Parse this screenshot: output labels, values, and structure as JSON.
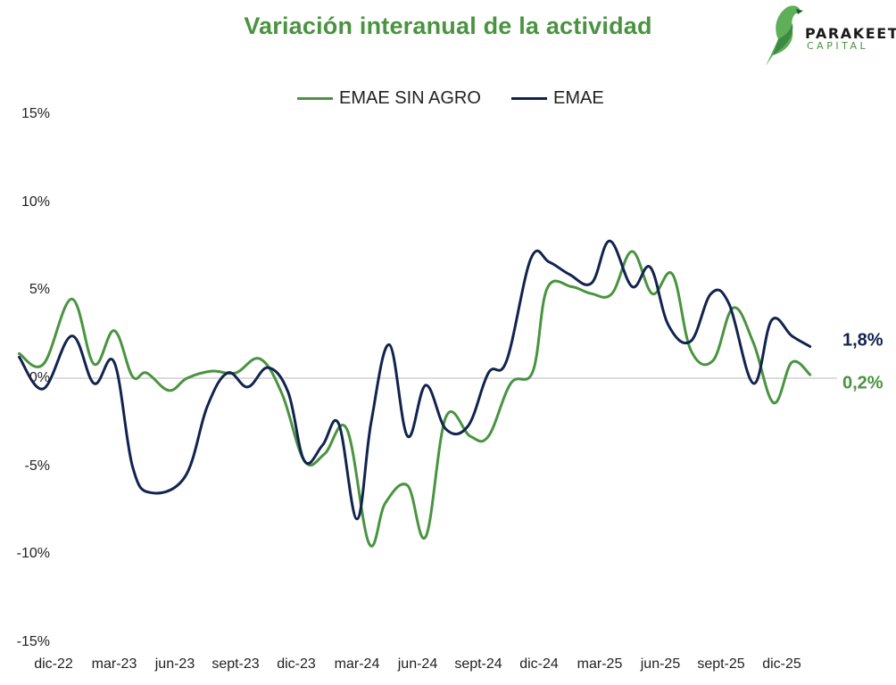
{
  "chart_data": {
    "type": "line",
    "title": "Variación interanual de la actividad",
    "xlabel": "",
    "ylabel": "",
    "ylim": [
      -15,
      15
    ],
    "y_ticks": [
      {
        "value": 15,
        "label": "15%"
      },
      {
        "value": 10,
        "label": "10%"
      },
      {
        "value": 5,
        "label": "5%"
      },
      {
        "value": 0,
        "label": "0%"
      },
      {
        "value": -5,
        "label": "-5%"
      },
      {
        "value": -10,
        "label": "-10%"
      },
      {
        "value": -15,
        "label": "-15%"
      }
    ],
    "x_ticks": [
      {
        "index": 0,
        "label": "dic-22"
      },
      {
        "index": 3,
        "label": "mar-23"
      },
      {
        "index": 6,
        "label": "jun-23"
      },
      {
        "index": 9,
        "label": "sept-23"
      },
      {
        "index": 12,
        "label": "dic-23"
      },
      {
        "index": 15,
        "label": "mar-24"
      },
      {
        "index": 18,
        "label": "jun-24"
      },
      {
        "index": 21,
        "label": "sept-24"
      },
      {
        "index": 24,
        "label": "dic-24"
      },
      {
        "index": 27,
        "label": "mar-25"
      },
      {
        "index": 30,
        "label": "jun-25"
      },
      {
        "index": 33,
        "label": "sept-25"
      },
      {
        "index": 36,
        "label": "dic-25"
      }
    ],
    "x_range": [
      0,
      39
    ],
    "series": [
      {
        "name": "EMAE SIN AGRO",
        "color": "#4a9340",
        "last_label": "0,2%",
        "x": [
          -1.7,
          -0.5,
          0.9,
          2.0,
          3.0,
          3.9,
          4.6,
          5.7,
          6.6,
          7.8,
          9.0,
          10.2,
          11.3,
          12.4,
          13.4,
          14.5,
          15.6,
          16.4,
          17.5,
          18.4,
          19.4,
          20.6,
          21.5,
          22.6,
          23.7,
          24.4,
          25.6,
          26.6,
          27.6,
          28.6,
          29.6,
          30.6,
          31.5,
          32.6,
          33.6,
          34.6,
          35.6,
          36.5,
          37.4
        ],
        "values": [
          1.4,
          0.8,
          4.5,
          0.8,
          2.7,
          0.1,
          0.3,
          -0.7,
          0.0,
          0.4,
          0.3,
          1.1,
          -0.9,
          -4.7,
          -4.3,
          -2.9,
          -9.4,
          -7.1,
          -6.1,
          -9.0,
          -2.2,
          -3.3,
          -3.3,
          -0.3,
          0.4,
          5.1,
          5.2,
          4.8,
          4.8,
          7.2,
          4.8,
          5.9,
          1.6,
          1.0,
          4.0,
          2.0,
          -1.4,
          0.9,
          0.2
        ]
      },
      {
        "name": "EMAE",
        "color": "#11234e",
        "last_label": "1,8%",
        "x": [
          -1.7,
          -0.5,
          0.9,
          2.0,
          3.0,
          3.9,
          4.8,
          6.5,
          7.6,
          8.6,
          9.6,
          10.6,
          11.6,
          12.4,
          13.3,
          14.1,
          15.0,
          15.7,
          16.6,
          17.5,
          18.4,
          19.4,
          20.5,
          21.5,
          22.4,
          23.6,
          24.5,
          25.5,
          26.6,
          27.5,
          28.6,
          29.5,
          30.4,
          31.5,
          32.5,
          33.4,
          34.6,
          35.5,
          36.5,
          37.4
        ],
        "values": [
          1.2,
          -0.6,
          2.4,
          -0.3,
          0.9,
          -5.0,
          -6.5,
          -5.6,
          -1.6,
          0.3,
          -0.5,
          0.6,
          -0.8,
          -4.7,
          -3.8,
          -2.6,
          -8.0,
          -2.5,
          1.9,
          -3.3,
          -0.4,
          -2.9,
          -2.7,
          0.3,
          1.0,
          6.8,
          6.6,
          5.9,
          5.4,
          7.8,
          5.2,
          6.3,
          3.0,
          2.1,
          4.8,
          4.2,
          -0.3,
          3.3,
          2.4,
          1.8
        ]
      }
    ]
  },
  "brand": {
    "name": "PARAKEET",
    "tagline": "CAPITAL",
    "logo_color": "#4a9340"
  },
  "zero_line_color": "#d0d0d0"
}
